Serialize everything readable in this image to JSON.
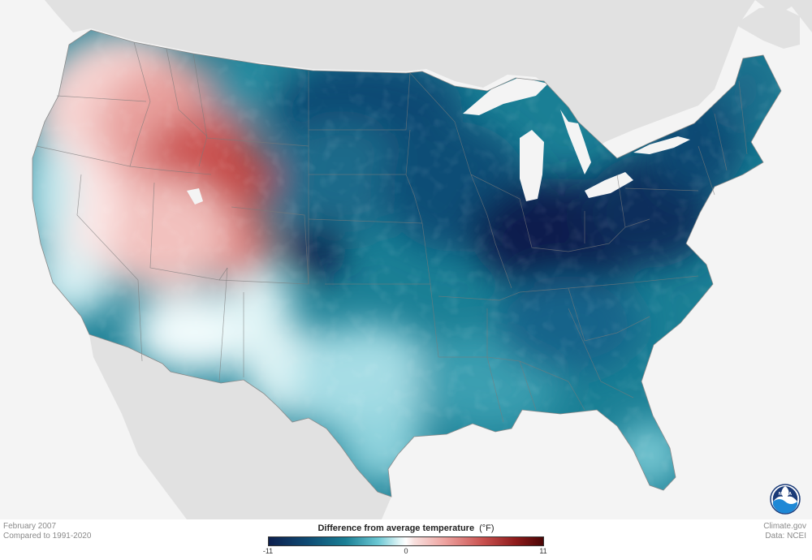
{
  "map": {
    "period": "February 2007",
    "baseline": "Compared to 1991-2020",
    "credit_site": "Climate.gov",
    "credit_data": "Data: NCEI"
  },
  "legend": {
    "title": "Difference from average temperature",
    "unit": "(°F)",
    "min_label": "-11",
    "mid_label": "0",
    "max_label": "11",
    "range": [
      -11,
      11
    ]
  },
  "logo": {
    "text": "NOAA",
    "icon": "noaa-logo-icon"
  },
  "colors": {
    "very_cold": "#0d1f4e",
    "cold": "#0e4a73",
    "cool": "#1a7f95",
    "slightly_cool": "#6cc8d4",
    "neutral": "#ffffff",
    "slightly_warm": "#f6cfcc",
    "warm": "#d96a66",
    "very_warm": "#4a0505",
    "land_outside": "#e0e0e0",
    "water": "#f4f4f4"
  }
}
